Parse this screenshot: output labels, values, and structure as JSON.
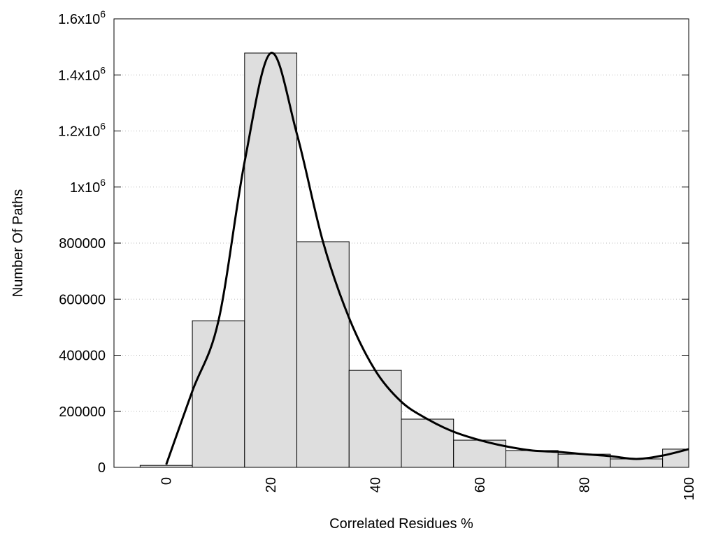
{
  "chart_data": {
    "type": "bar",
    "title": "",
    "xlabel": "Correlated Residues %",
    "ylabel": "Number Of Paths",
    "xlim": [
      -10,
      100
    ],
    "ylim": [
      0,
      1600000
    ],
    "grid": "horizontal dotted",
    "bar_width": 10,
    "bar_color": "#dedede",
    "curve_color": "#000000",
    "x_ticks": [
      {
        "value": 0,
        "label": "0"
      },
      {
        "value": 20,
        "label": "20"
      },
      {
        "value": 40,
        "label": "40"
      },
      {
        "value": 60,
        "label": "60"
      },
      {
        "value": 80,
        "label": "80"
      },
      {
        "value": 100,
        "label": "100"
      }
    ],
    "y_ticks": [
      {
        "value": 0,
        "label": "0",
        "sup": ""
      },
      {
        "value": 200000,
        "label": "200000",
        "sup": ""
      },
      {
        "value": 400000,
        "label": "400000",
        "sup": ""
      },
      {
        "value": 600000,
        "label": "600000",
        "sup": ""
      },
      {
        "value": 800000,
        "label": "800000",
        "sup": ""
      },
      {
        "value": 1000000,
        "label": "1x10",
        "sup": "6"
      },
      {
        "value": 1200000,
        "label": "1.2x10",
        "sup": "6"
      },
      {
        "value": 1400000,
        "label": "1.4x10",
        "sup": "6"
      },
      {
        "value": 1600000,
        "label": "1.6x10",
        "sup": "6"
      }
    ],
    "bars": {
      "x": [
        0,
        10,
        20,
        30,
        40,
        50,
        60,
        70,
        80,
        90,
        100
      ],
      "values": [
        7000,
        523000,
        1478000,
        805000,
        346000,
        172000,
        97000,
        60000,
        47000,
        30000,
        65000
      ]
    },
    "curve": {
      "x": [
        0,
        5,
        10,
        15,
        20,
        25,
        30,
        35,
        40,
        45,
        50,
        55,
        60,
        65,
        70,
        75,
        80,
        85,
        90,
        95,
        100
      ],
      "values": [
        10000,
        272000,
        523000,
        1090000,
        1478000,
        1190000,
        805000,
        533000,
        346000,
        234000,
        172000,
        127000,
        97000,
        75000,
        60000,
        55000,
        47000,
        40000,
        30000,
        42000,
        65000
      ]
    }
  }
}
